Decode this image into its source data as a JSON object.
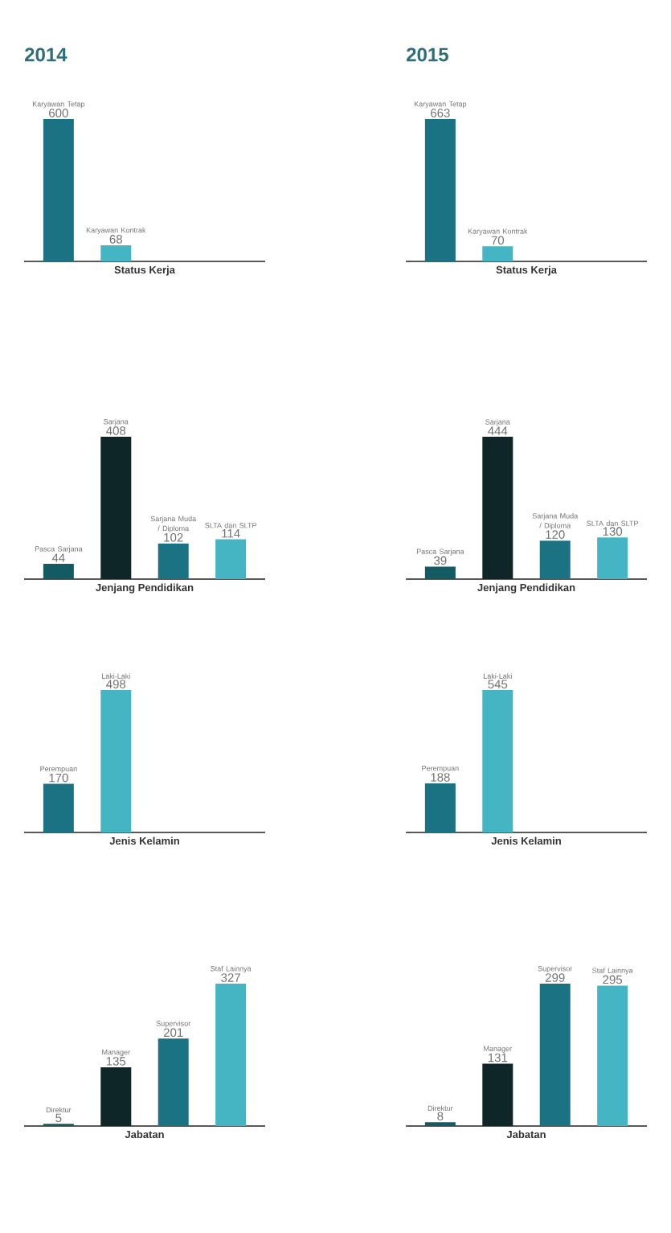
{
  "chart_data": [
    {
      "type": "bar",
      "title": "2014",
      "xlabel": "Status Kerja",
      "categories": [
        "Karyawan Tetap",
        "Karyawan Kontrak"
      ],
      "values": [
        600,
        68
      ],
      "colors": [
        "#1b7282",
        "#45b5c4"
      ],
      "data_labels": true
    },
    {
      "type": "bar",
      "title": "2015",
      "xlabel": "Status Kerja",
      "categories": [
        "Karyawan Tetap",
        "Karyawan Kontrak"
      ],
      "values": [
        663,
        70
      ],
      "colors": [
        "#1b7282",
        "#45b5c4"
      ],
      "data_labels": true
    },
    {
      "type": "bar",
      "xlabel": "Jenjang Pendidikan",
      "categories": [
        "Pasca Sarjana",
        "Sarjana",
        "Sarjana Muda / Diploma",
        "SLTA dan SLTP"
      ],
      "values": [
        44,
        408,
        102,
        114
      ],
      "colors": [
        "#145a63",
        "#0e2627",
        "#1b7282",
        "#45b5c4"
      ],
      "data_labels": true
    },
    {
      "type": "bar",
      "xlabel": "Jenjang Pendidikan",
      "categories": [
        "Pasca Sarjana",
        "Sarjana",
        "Sarjana Muda / Diploma",
        "SLTA dan SLTP"
      ],
      "values": [
        39,
        444,
        120,
        130
      ],
      "colors": [
        "#145a63",
        "#0e2627",
        "#1b7282",
        "#45b5c4"
      ],
      "data_labels": true
    },
    {
      "type": "bar",
      "xlabel": "Jenis Kelamin",
      "categories": [
        "Perempuan",
        "Laki-Laki"
      ],
      "values": [
        170,
        498
      ],
      "colors": [
        "#1b7282",
        "#45b5c4"
      ],
      "data_labels": true
    },
    {
      "type": "bar",
      "xlabel": "Jenis Kelamin",
      "categories": [
        "Perempuan",
        "Laki-Laki"
      ],
      "values": [
        188,
        545
      ],
      "colors": [
        "#1b7282",
        "#45b5c4"
      ],
      "data_labels": true
    },
    {
      "type": "bar",
      "xlabel": "Jabatan",
      "categories": [
        "Direktur",
        "Manager",
        "Supervisor",
        "Staf Lainnya"
      ],
      "values": [
        5,
        135,
        201,
        327
      ],
      "colors": [
        "#145a63",
        "#0e2627",
        "#1b7282",
        "#45b5c4"
      ],
      "data_labels": true
    },
    {
      "type": "bar",
      "xlabel": "Jabatan",
      "categories": [
        "Direktur",
        "Manager",
        "Supervisor",
        "Staf Lainnya"
      ],
      "values": [
        8,
        131,
        299,
        295
      ],
      "colors": [
        "#145a63",
        "#0e2627",
        "#1b7282",
        "#45b5c4"
      ],
      "data_labels": true
    }
  ]
}
